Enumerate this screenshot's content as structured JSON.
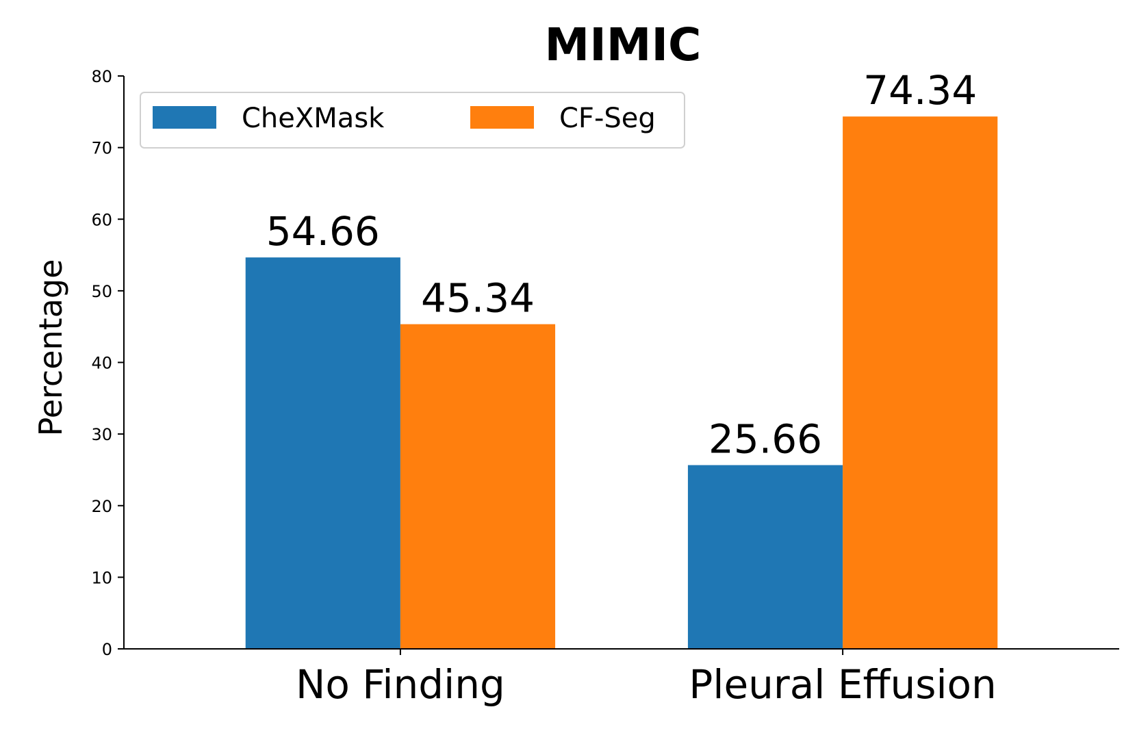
{
  "chart_data": {
    "type": "bar",
    "title": "MIMIC",
    "xlabel": "",
    "ylabel": "Percentage",
    "ylim": [
      0,
      80
    ],
    "yticks": [
      0,
      10,
      20,
      30,
      40,
      50,
      60,
      70,
      80
    ],
    "categories": [
      "No Finding",
      "Pleural Effusion"
    ],
    "series": [
      {
        "name": "CheXMask",
        "color": "#1f77b4",
        "values": [
          54.66,
          25.66
        ],
        "labels": [
          "54.66",
          "25.66"
        ]
      },
      {
        "name": "CF-Seg",
        "color": "#ff7f0e",
        "values": [
          45.34,
          74.34
        ],
        "labels": [
          "45.34",
          "74.34"
        ]
      }
    ],
    "grid": false,
    "legend_position": "top-left"
  }
}
